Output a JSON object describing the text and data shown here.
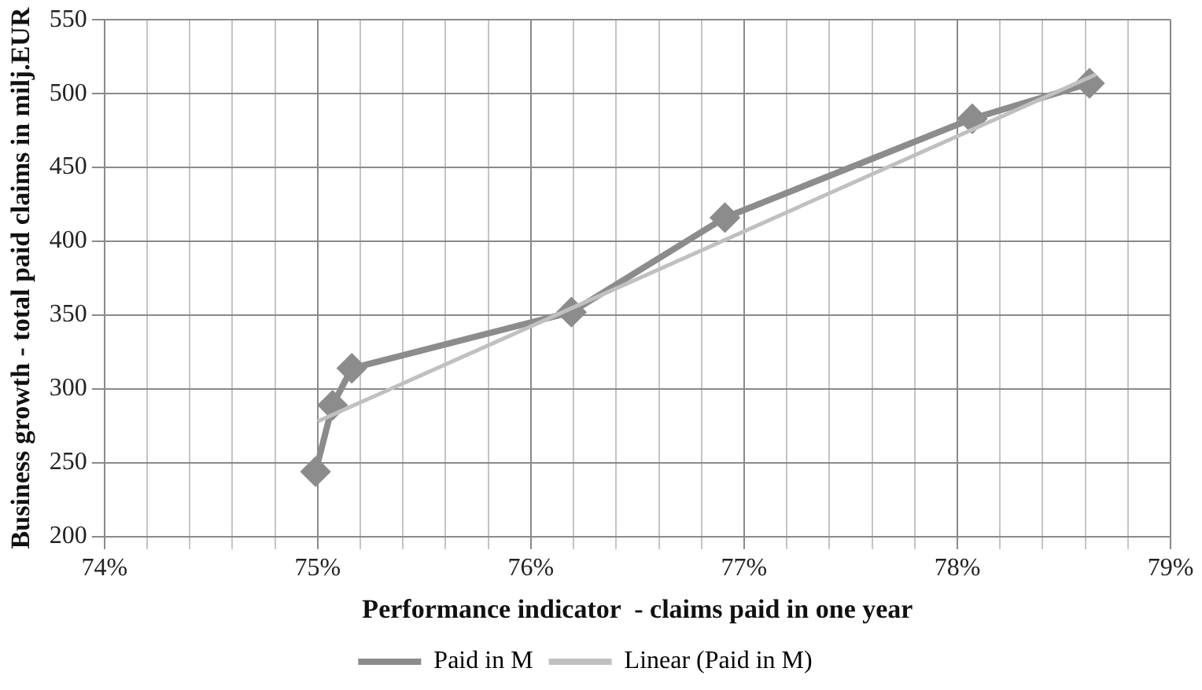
{
  "chart_data": {
    "type": "line",
    "xlabel": "Performance indicator  - claims paid in one year",
    "ylabel": "Business growth - total paid claims in milj.EUR",
    "xlim": [
      74,
      79
    ],
    "xticks": [
      {
        "value": 74,
        "label": "74%"
      },
      {
        "value": 74.2,
        "label": null
      },
      {
        "value": 74.4,
        "label": null
      },
      {
        "value": 74.6,
        "label": null
      },
      {
        "value": 74.8,
        "label": null
      },
      {
        "value": 75,
        "label": "75%"
      },
      {
        "value": 75.2,
        "label": null
      },
      {
        "value": 75.4,
        "label": null
      },
      {
        "value": 75.6,
        "label": null
      },
      {
        "value": 75.8,
        "label": null
      },
      {
        "value": 76,
        "label": "76%"
      },
      {
        "value": 76.2,
        "label": null
      },
      {
        "value": 76.4,
        "label": null
      },
      {
        "value": 76.6,
        "label": null
      },
      {
        "value": 76.8,
        "label": null
      },
      {
        "value": 77,
        "label": "77%"
      },
      {
        "value": 77.2,
        "label": null
      },
      {
        "value": 77.4,
        "label": null
      },
      {
        "value": 77.6,
        "label": null
      },
      {
        "value": 77.8,
        "label": null
      },
      {
        "value": 78,
        "label": "78%"
      },
      {
        "value": 78.2,
        "label": null
      },
      {
        "value": 78.4,
        "label": null
      },
      {
        "value": 78.6,
        "label": null
      },
      {
        "value": 78.8,
        "label": null
      },
      {
        "value": 79,
        "label": "79%"
      }
    ],
    "ylim": [
      200,
      550
    ],
    "yticks": [
      200,
      250,
      300,
      350,
      400,
      450,
      500,
      550
    ],
    "grid": true,
    "legend": "bottom",
    "series": [
      {
        "name": "Paid in M",
        "color": "#8c8c8c",
        "marker": "diamond",
        "x": [
          74.99,
          75.07,
          75.16,
          76.19,
          76.91,
          78.07,
          78.62
        ],
        "values": [
          244,
          289,
          314,
          352,
          416,
          483,
          507
        ]
      },
      {
        "name": "Linear (Paid in M)",
        "type": "line",
        "color": "#c0c0c0",
        "marker": "none",
        "x": [
          75.0,
          78.65
        ],
        "values": [
          278,
          513
        ]
      }
    ]
  }
}
